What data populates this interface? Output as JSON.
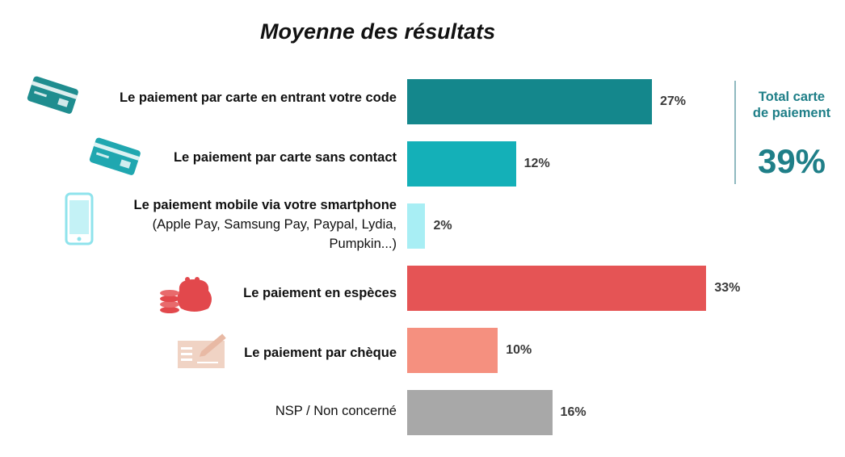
{
  "chart_data": {
    "type": "bar",
    "orientation": "horizontal",
    "title": "Moyenne des résultats",
    "xlim": [
      0,
      100
    ],
    "grid": false,
    "categories": [
      {
        "label": "Le paiement par carte en entrant votre code",
        "sub": "",
        "value": 27,
        "value_label": "27%",
        "color": "#14878c",
        "icon": "credit-card-icon",
        "bold": true
      },
      {
        "label": "Le paiement par carte sans contact",
        "sub": "",
        "value": 12,
        "value_label": "12%",
        "color": "#14b0b8",
        "icon": "contactless-card-icon",
        "bold": true
      },
      {
        "label": "Le paiement mobile via votre smartphone",
        "sub": "(Apple Pay, Samsung Pay, Paypal, Lydia, Pumpkin...)",
        "value": 2,
        "value_label": "2%",
        "color": "#a8eef4",
        "icon": "smartphone-icon",
        "bold": true
      },
      {
        "label": "Le paiement en espèces",
        "sub": "",
        "value": 33,
        "value_label": "33%",
        "color": "#e55455",
        "icon": "coins-purse-icon",
        "bold": true
      },
      {
        "label": "Le paiement par chèque",
        "sub": "",
        "value": 10,
        "value_label": "10%",
        "color": "#f5907f",
        "icon": "cheque-icon",
        "bold": true
      },
      {
        "label": "NSP / Non concerné",
        "sub": "",
        "value": 16,
        "value_label": "16%",
        "color": "#a8a8a8",
        "icon": "",
        "bold": false
      }
    ],
    "annotation": {
      "label": "Total carte de paiement",
      "value_label": "39%"
    }
  }
}
